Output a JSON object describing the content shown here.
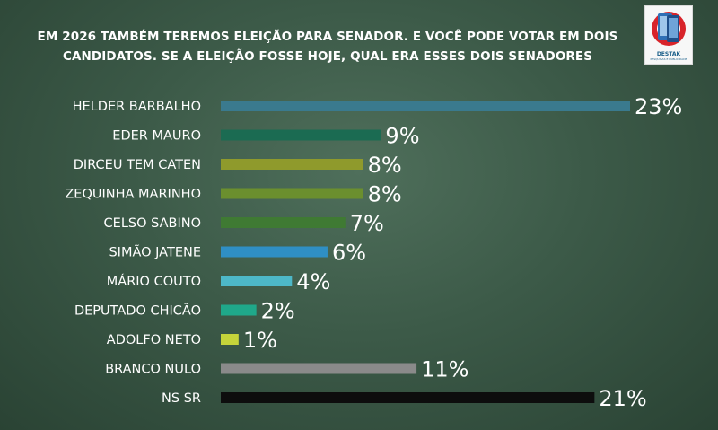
{
  "title_line1": "EM 2026 TAMBÉM TEREMOS ELEIÇÃO PARA SENADOR. E VOCÊ PODE VOTAR EM DOIS",
  "title_line2": "CANDIDATOS. SE A ELEIÇÃO FOSSE HOJE, QUAL ERA ESSES DOIS SENADORES",
  "logo": {
    "brand": "DESTAK",
    "tagline": "PESQUISAS E PUBLICIDADE",
    "icon": "phone-ballot-logo-icon",
    "colors": {
      "red": "#d8232a",
      "blue": "#2f6fb5"
    }
  },
  "chart_data": {
    "type": "bar",
    "orientation": "horizontal",
    "title": "EM 2026 TAMBÉM TEREMOS ELEIÇÃO PARA SENADOR. E VOCÊ PODE VOTAR EM DOIS CANDIDATOS. SE A ELEIÇÃO FOSSE HOJE, QUAL ERA ESSES DOIS SENADORES",
    "xlabel": "",
    "ylabel": "",
    "xlim": [
      0,
      23
    ],
    "grid": false,
    "legend": "none",
    "bars": [
      {
        "category": "HELDER BARBALHO",
        "value": 23,
        "label": "23%",
        "color": "#3a7a8e"
      },
      {
        "category": "EDER MAURO",
        "value": 9,
        "label": "9%",
        "color": "#1b6b52"
      },
      {
        "category": "DIRCEU TEM CATEN",
        "value": 8,
        "label": "8%",
        "color": "#8f9a2c"
      },
      {
        "category": "ZEQUINHA MARINHO",
        "value": 8,
        "label": "8%",
        "color": "#6b8f2e"
      },
      {
        "category": "CELSO SABINO",
        "value": 7,
        "label": "7%",
        "color": "#3f7a33"
      },
      {
        "category": "SIMÃO  JATENE",
        "value": 6,
        "label": "6%",
        "color": "#2f8fc4"
      },
      {
        "category": "MÁRIO COUTO",
        "value": 4,
        "label": "4%",
        "color": "#4db8c8"
      },
      {
        "category": "DEPUTADO CHICÃO",
        "value": 2,
        "label": "2%",
        "color": "#1fa88a"
      },
      {
        "category": "ADOLFO NETO",
        "value": 1,
        "label": "1%",
        "color": "#c5d43a"
      },
      {
        "category": "BRANCO NULO",
        "value": 11,
        "label": "11%",
        "color": "#8a8a8a"
      },
      {
        "category": "NS SR",
        "value": 21,
        "label": "21%",
        "color": "#0d0d0d"
      }
    ]
  }
}
